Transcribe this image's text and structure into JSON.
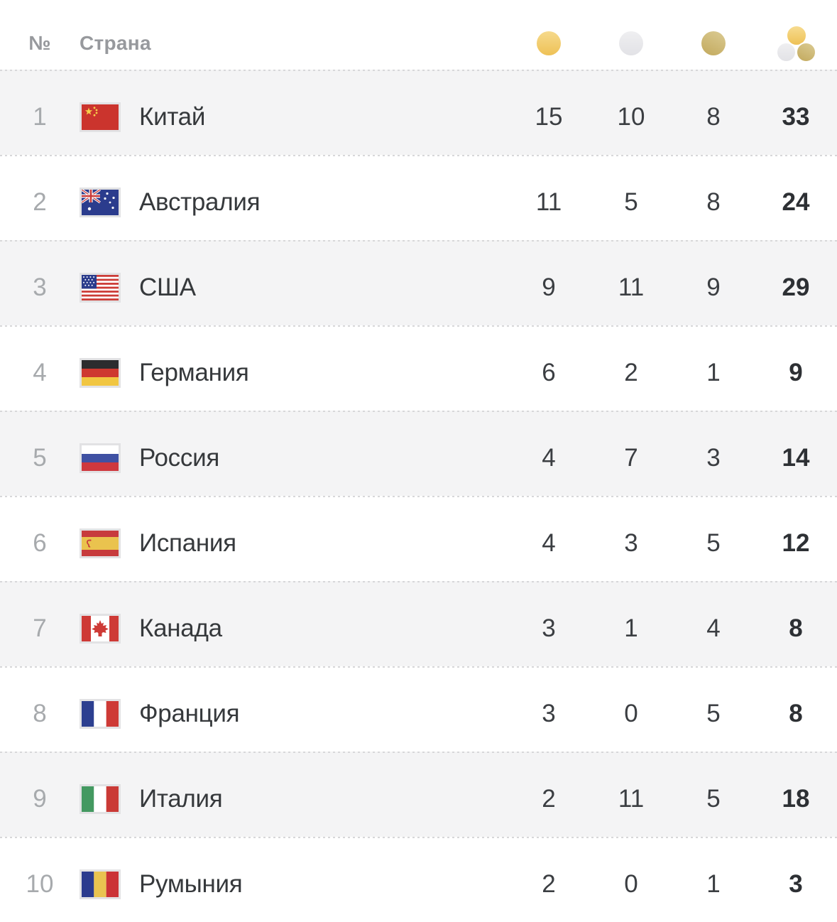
{
  "header": {
    "rank_label": "№",
    "country_label": "Страна",
    "medal_columns": [
      {
        "icon": "gold-medal-icon",
        "color": "#eec156"
      },
      {
        "icon": "silver-medal-icon",
        "color": "#e2e2e6"
      },
      {
        "icon": "bronze-medal-icon",
        "color": "#c2a95d"
      },
      {
        "icon": "total-medals-icon",
        "color": "#eec156"
      }
    ]
  },
  "colors": {
    "row_alt_bg": "#f4f4f5",
    "separator": "#d7d7d9",
    "header_text": "#97999d",
    "rank_text": "#a7aaad",
    "name_text": "#36393c",
    "total_text": "#2d3034"
  },
  "rows": [
    {
      "rank": "1",
      "flag": "cn",
      "country": "Китай",
      "gold": "15",
      "silver": "10",
      "bronze": "8",
      "total": "33"
    },
    {
      "rank": "2",
      "flag": "au",
      "country": "Австралия",
      "gold": "11",
      "silver": "5",
      "bronze": "8",
      "total": "24"
    },
    {
      "rank": "3",
      "flag": "us",
      "country": "США",
      "gold": "9",
      "silver": "11",
      "bronze": "9",
      "total": "29"
    },
    {
      "rank": "4",
      "flag": "de",
      "country": "Германия",
      "gold": "6",
      "silver": "2",
      "bronze": "1",
      "total": "9"
    },
    {
      "rank": "5",
      "flag": "ru",
      "country": "Россия",
      "gold": "4",
      "silver": "7",
      "bronze": "3",
      "total": "14"
    },
    {
      "rank": "6",
      "flag": "es",
      "country": "Испания",
      "gold": "4",
      "silver": "3",
      "bronze": "5",
      "total": "12"
    },
    {
      "rank": "7",
      "flag": "ca",
      "country": "Канада",
      "gold": "3",
      "silver": "1",
      "bronze": "4",
      "total": "8"
    },
    {
      "rank": "8",
      "flag": "fr",
      "country": "Франция",
      "gold": "3",
      "silver": "0",
      "bronze": "5",
      "total": "8"
    },
    {
      "rank": "9",
      "flag": "it",
      "country": "Италия",
      "gold": "2",
      "silver": "11",
      "bronze": "5",
      "total": "18"
    },
    {
      "rank": "10",
      "flag": "ro",
      "country": "Румыния",
      "gold": "2",
      "silver": "0",
      "bronze": "1",
      "total": "3"
    }
  ]
}
